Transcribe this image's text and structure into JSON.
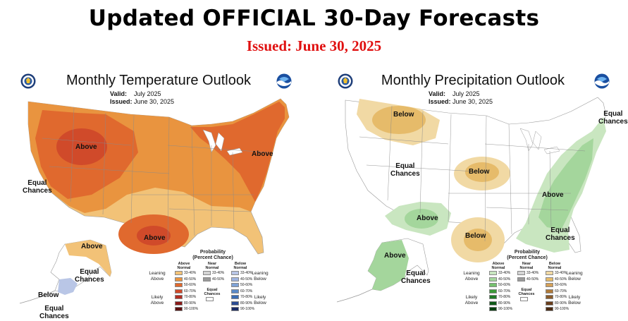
{
  "header": {
    "title": "Updated OFFICIAL 30-Day Forecasts",
    "issued": "Issued: June 30, 2025"
  },
  "colors": {
    "title": "#000000",
    "issued": "#e01010",
    "temp_above": [
      "#f2c277",
      "#e9943f",
      "#e0692e",
      "#d04a2a",
      "#b22e22",
      "#8a1a18",
      "#5a0f0f"
    ],
    "temp_below": [
      "#b9c6e6",
      "#9fb4df",
      "#7fa3d6",
      "#5a8ac8",
      "#3a6cb4",
      "#2a4b93",
      "#1a2b66"
    ],
    "precip_above": [
      "#c9e6c0",
      "#a4d69c",
      "#76c06e",
      "#3d9a3a",
      "#1f7a26",
      "#0f5a18",
      "#07400f"
    ],
    "precip_below": [
      "#f1d9a4",
      "#e6bb6a",
      "#d4a058",
      "#b07a3a",
      "#8a5a2a",
      "#6a3e1c",
      "#4a2a12"
    ],
    "near_normal": [
      "#d4d4d4",
      "#9a9a9a"
    ]
  },
  "temperature_panel": {
    "title": "Monthly Temperature Outlook",
    "valid_label": "Valid:",
    "valid_value": "July 2025",
    "issued_label": "Issued:",
    "issued_value": "June 30, 2025",
    "labels": {
      "above_west": "Above",
      "above_northeast": "Above",
      "above_texas": "Above",
      "above_alaska": "Above",
      "equal_chances_west": "Equal\nChances",
      "equal_chances_alaska": "Equal\nChances",
      "below_alaska": "Below",
      "equal_chances_aleutians": "Equal\nChances"
    },
    "legend": {
      "title": "Probability\n(Percent Chance)",
      "col_above": "Above\nNormal",
      "col_near": "Near\nNormal",
      "col_below": "Below\nNormal",
      "leaning_left": "Leaning\nAbove",
      "likely_left": "Likely\nAbove",
      "leaning_right": "Leaning\nBelow",
      "likely_right": "Likely\nBelow",
      "equal": "Equal\nChances",
      "ranges": [
        "33-40%",
        "40-50%",
        "50-60%",
        "60-70%",
        "70-80%",
        "80-90%",
        "90-100%"
      ],
      "near_ranges": [
        "33-40%",
        "40-50%"
      ]
    }
  },
  "precipitation_panel": {
    "title": "Monthly Precipitation Outlook",
    "valid_label": "Valid:",
    "valid_value": "July 2025",
    "issued_label": "Issued:",
    "issued_value": "June 30, 2025",
    "labels": {
      "below_north": "Below",
      "below_plains": "Below",
      "below_texas": "Below",
      "above_southwest": "Above",
      "above_east": "Above",
      "above_alaska": "Above",
      "equal_chances_northeast": "Equal\nChances",
      "equal_chances_west": "Equal\nChances",
      "equal_chances_southeast": "Equal\nChances",
      "equal_chances_alaska": "Equal\nChances"
    },
    "legend": {
      "title": "Probability\n(Percent Chance)",
      "col_above": "Above\nNormal",
      "col_near": "Near\nNormal",
      "col_below": "Below\nNormal",
      "leaning_left": "Leaning\nAbove",
      "likely_left": "Likely\nAbove",
      "leaning_right": "Leaning\nBelow",
      "likely_right": "Likely\nBelow",
      "equal": "Equal\nChances",
      "ranges": [
        "33-40%",
        "40-50%",
        "50-60%",
        "60-70%",
        "70-80%",
        "80-90%",
        "90-100%"
      ],
      "near_ranges": [
        "33-40%",
        "40-50%"
      ]
    }
  },
  "icons": {
    "left_seal": "commerce-seal-icon",
    "right_seal": "noaa-logo-icon"
  }
}
